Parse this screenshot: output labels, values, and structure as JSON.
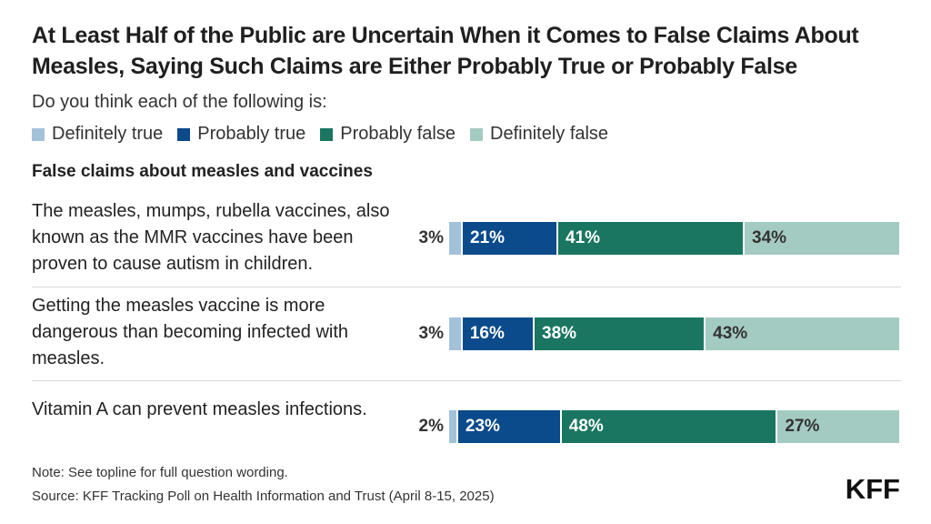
{
  "title": "At Least Half of the Public are Uncertain When it Comes to False Claims About Measles, Saying Such Claims are Either Probably True or Probably False",
  "subtitle": "Do you think each of the following is:",
  "group_label": "False claims about measles and vaccines",
  "note": "Note: See topline for full question wording.",
  "source": "Source: KFF Tracking Poll on Health Information and Trust (April 8-15, 2025)",
  "logo": "KFF",
  "colors": {
    "definitely_true": "#a4c1da",
    "probably_true": "#0b4a8b",
    "probably_false": "#1a7660",
    "definitely_false": "#a4cbc1"
  },
  "chart_data": {
    "type": "bar",
    "orientation": "horizontal",
    "stacked": true,
    "categories": [
      "The measles, mumps, rubella vaccines, also known as the MMR vaccines have been proven to cause autism in children.",
      "Getting the measles vaccine is more dangerous than becoming infected with measles.",
      "Vitamin A can prevent measles infections."
    ],
    "series": [
      {
        "name": "Definitely true",
        "values": [
          3,
          3,
          2
        ]
      },
      {
        "name": "Probably true",
        "values": [
          21,
          16,
          23
        ]
      },
      {
        "name": "Probably false",
        "values": [
          41,
          38,
          48
        ]
      },
      {
        "name": "Definitely false",
        "values": [
          34,
          43,
          27
        ]
      }
    ],
    "labels": [
      [
        "3%",
        "21%",
        "41%",
        "34%"
      ],
      [
        "3%",
        "16%",
        "38%",
        "43%"
      ],
      [
        "2%",
        "23%",
        "48%",
        "27%"
      ]
    ],
    "xlim": [
      0,
      100
    ],
    "legend": "top-left",
    "grid": false
  }
}
